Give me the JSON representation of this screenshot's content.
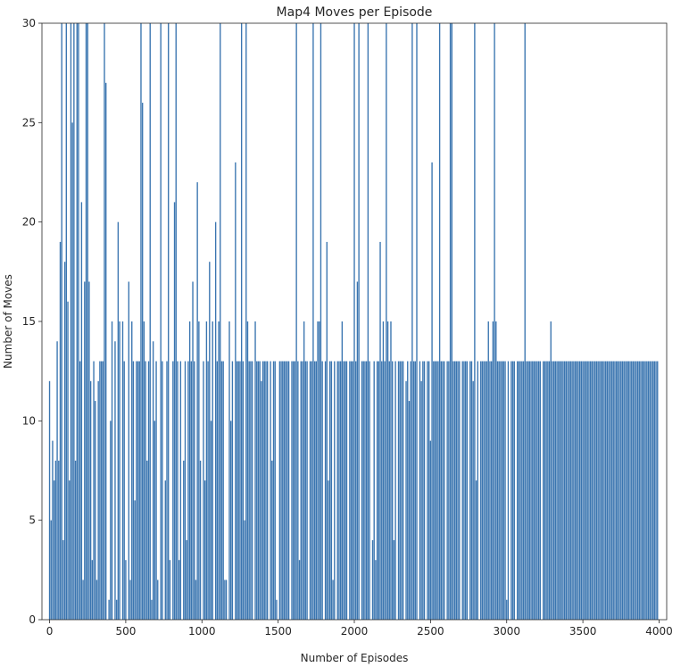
{
  "chart_data": {
    "type": "bar",
    "title": "Map4 Moves per Episode",
    "xlabel": "Number of Episodes",
    "ylabel": "Number of Moves",
    "xlim": [
      -50,
      4050
    ],
    "ylim": [
      0,
      30
    ],
    "xticks": [
      0,
      500,
      1000,
      1500,
      2000,
      2500,
      3000,
      3500,
      4000
    ],
    "yticks": [
      0,
      5,
      10,
      15,
      20,
      25,
      30
    ],
    "grid": false,
    "bar_color": "#3a75b0",
    "baseline_value": 13,
    "bar_spacing_episodes": 10,
    "x_range": [
      0,
      3990
    ],
    "gap_episodes": [
      1,
      5,
      95,
      195,
      215,
      335,
      345,
      355,
      380,
      420,
      470,
      510,
      575,
      655,
      720,
      750,
      800,
      870,
      915,
      945,
      1000,
      1045,
      1080,
      1170,
      1210,
      1340,
      1440,
      1500,
      1580,
      1700,
      1745,
      1800,
      1880,
      1960,
      2040,
      2110,
      2280,
      2330,
      2420,
      2470,
      2600,
      2700,
      2750,
      2820,
      3020,
      3060,
      3230
    ],
    "special_values": [
      {
        "x": 0,
        "y": 12
      },
      {
        "x": 10,
        "y": 5
      },
      {
        "x": 20,
        "y": 9
      },
      {
        "x": 30,
        "y": 7
      },
      {
        "x": 40,
        "y": 8
      },
      {
        "x": 50,
        "y": 14
      },
      {
        "x": 60,
        "y": 8
      },
      {
        "x": 70,
        "y": 19
      },
      {
        "x": 80,
        "y": 30
      },
      {
        "x": 90,
        "y": 4
      },
      {
        "x": 100,
        "y": 18
      },
      {
        "x": 110,
        "y": 30
      },
      {
        "x": 120,
        "y": 16
      },
      {
        "x": 130,
        "y": 7
      },
      {
        "x": 140,
        "y": 30
      },
      {
        "x": 150,
        "y": 25
      },
      {
        "x": 160,
        "y": 30
      },
      {
        "x": 170,
        "y": 8
      },
      {
        "x": 180,
        "y": 30
      },
      {
        "x": 190,
        "y": 30
      },
      {
        "x": 210,
        "y": 21
      },
      {
        "x": 220,
        "y": 2
      },
      {
        "x": 230,
        "y": 17
      },
      {
        "x": 240,
        "y": 30
      },
      {
        "x": 250,
        "y": 30
      },
      {
        "x": 260,
        "y": 17
      },
      {
        "x": 270,
        "y": 12
      },
      {
        "x": 280,
        "y": 3
      },
      {
        "x": 290,
        "y": 13
      },
      {
        "x": 300,
        "y": 11
      },
      {
        "x": 310,
        "y": 2
      },
      {
        "x": 320,
        "y": 12
      },
      {
        "x": 360,
        "y": 30
      },
      {
        "x": 370,
        "y": 27
      },
      {
        "x": 390,
        "y": 1
      },
      {
        "x": 400,
        "y": 10
      },
      {
        "x": 410,
        "y": 15
      },
      {
        "x": 430,
        "y": 14
      },
      {
        "x": 440,
        "y": 1
      },
      {
        "x": 450,
        "y": 20
      },
      {
        "x": 460,
        "y": 15
      },
      {
        "x": 480,
        "y": 15
      },
      {
        "x": 500,
        "y": 3
      },
      {
        "x": 520,
        "y": 17
      },
      {
        "x": 530,
        "y": 2
      },
      {
        "x": 540,
        "y": 15
      },
      {
        "x": 560,
        "y": 6
      },
      {
        "x": 600,
        "y": 30
      },
      {
        "x": 610,
        "y": 26
      },
      {
        "x": 620,
        "y": 15
      },
      {
        "x": 640,
        "y": 8
      },
      {
        "x": 660,
        "y": 30
      },
      {
        "x": 670,
        "y": 1
      },
      {
        "x": 680,
        "y": 14
      },
      {
        "x": 690,
        "y": 10
      },
      {
        "x": 710,
        "y": 2
      },
      {
        "x": 730,
        "y": 30
      },
      {
        "x": 760,
        "y": 7
      },
      {
        "x": 780,
        "y": 30
      },
      {
        "x": 790,
        "y": 3
      },
      {
        "x": 820,
        "y": 21
      },
      {
        "x": 830,
        "y": 30
      },
      {
        "x": 850,
        "y": 3
      },
      {
        "x": 880,
        "y": 8
      },
      {
        "x": 900,
        "y": 4
      },
      {
        "x": 920,
        "y": 15
      },
      {
        "x": 940,
        "y": 17
      },
      {
        "x": 960,
        "y": 2
      },
      {
        "x": 970,
        "y": 22
      },
      {
        "x": 980,
        "y": 15
      },
      {
        "x": 990,
        "y": 8
      },
      {
        "x": 1020,
        "y": 7
      },
      {
        "x": 1030,
        "y": 15
      },
      {
        "x": 1050,
        "y": 18
      },
      {
        "x": 1060,
        "y": 10
      },
      {
        "x": 1070,
        "y": 15
      },
      {
        "x": 1090,
        "y": 20
      },
      {
        "x": 1110,
        "y": 15
      },
      {
        "x": 1120,
        "y": 30
      },
      {
        "x": 1150,
        "y": 2
      },
      {
        "x": 1160,
        "y": 2
      },
      {
        "x": 1180,
        "y": 15
      },
      {
        "x": 1190,
        "y": 10
      },
      {
        "x": 1220,
        "y": 23
      },
      {
        "x": 1260,
        "y": 30
      },
      {
        "x": 1280,
        "y": 5
      },
      {
        "x": 1290,
        "y": 30
      },
      {
        "x": 1300,
        "y": 15
      },
      {
        "x": 1350,
        "y": 15
      },
      {
        "x": 1390,
        "y": 12
      },
      {
        "x": 1460,
        "y": 8
      },
      {
        "x": 1490,
        "y": 1
      },
      {
        "x": 1620,
        "y": 30
      },
      {
        "x": 1640,
        "y": 3
      },
      {
        "x": 1670,
        "y": 15
      },
      {
        "x": 1730,
        "y": 30
      },
      {
        "x": 1760,
        "y": 15
      },
      {
        "x": 1770,
        "y": 15
      },
      {
        "x": 1780,
        "y": 30
      },
      {
        "x": 1820,
        "y": 19
      },
      {
        "x": 1830,
        "y": 7
      },
      {
        "x": 1860,
        "y": 2
      },
      {
        "x": 1920,
        "y": 15
      },
      {
        "x": 2000,
        "y": 30
      },
      {
        "x": 2020,
        "y": 17
      },
      {
        "x": 2030,
        "y": 30
      },
      {
        "x": 2090,
        "y": 30
      },
      {
        "x": 2120,
        "y": 4
      },
      {
        "x": 2140,
        "y": 3
      },
      {
        "x": 2170,
        "y": 19
      },
      {
        "x": 2190,
        "y": 15
      },
      {
        "x": 2210,
        "y": 30
      },
      {
        "x": 2220,
        "y": 15
      },
      {
        "x": 2240,
        "y": 15
      },
      {
        "x": 2260,
        "y": 4
      },
      {
        "x": 2340,
        "y": 12
      },
      {
        "x": 2360,
        "y": 11
      },
      {
        "x": 2380,
        "y": 30
      },
      {
        "x": 2410,
        "y": 30
      },
      {
        "x": 2440,
        "y": 12
      },
      {
        "x": 2500,
        "y": 9
      },
      {
        "x": 2510,
        "y": 23
      },
      {
        "x": 2560,
        "y": 30
      },
      {
        "x": 2630,
        "y": 30
      },
      {
        "x": 2640,
        "y": 30
      },
      {
        "x": 2780,
        "y": 12
      },
      {
        "x": 2790,
        "y": 30
      },
      {
        "x": 2800,
        "y": 7
      },
      {
        "x": 2880,
        "y": 15
      },
      {
        "x": 2910,
        "y": 15
      },
      {
        "x": 2920,
        "y": 30
      },
      {
        "x": 2930,
        "y": 15
      },
      {
        "x": 3000,
        "y": 1
      },
      {
        "x": 3120,
        "y": 30
      },
      {
        "x": 3290,
        "y": 15
      }
    ]
  }
}
